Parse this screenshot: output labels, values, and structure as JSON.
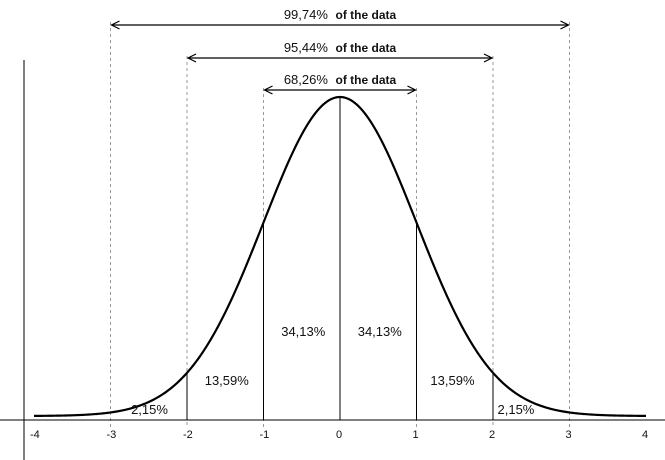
{
  "chart_data": {
    "type": "line",
    "x_ticks": [
      "-4",
      "-3",
      "-2",
      "-1",
      "0",
      "1",
      "2",
      "3",
      "4"
    ],
    "xlim": [
      -4,
      4
    ],
    "region_labels": [
      {
        "id": "left-tail",
        "text": "2,15%"
      },
      {
        "id": "left-2sd",
        "text": "13,59%"
      },
      {
        "id": "left-1sd",
        "text": "34,13%"
      },
      {
        "id": "right-1sd",
        "text": "34,13%"
      },
      {
        "id": "right-2sd",
        "text": "13,59%"
      },
      {
        "id": "right-tail",
        "text": "2,15%"
      }
    ],
    "ranges": [
      {
        "from": -1,
        "to": 1,
        "percent": "68,26%",
        "suffix": "of the data"
      },
      {
        "from": -2,
        "to": 2,
        "percent": "95,44%",
        "suffix": "of the data"
      },
      {
        "from": -3,
        "to": 3,
        "percent": "99,74%",
        "suffix": "of the data"
      }
    ]
  }
}
